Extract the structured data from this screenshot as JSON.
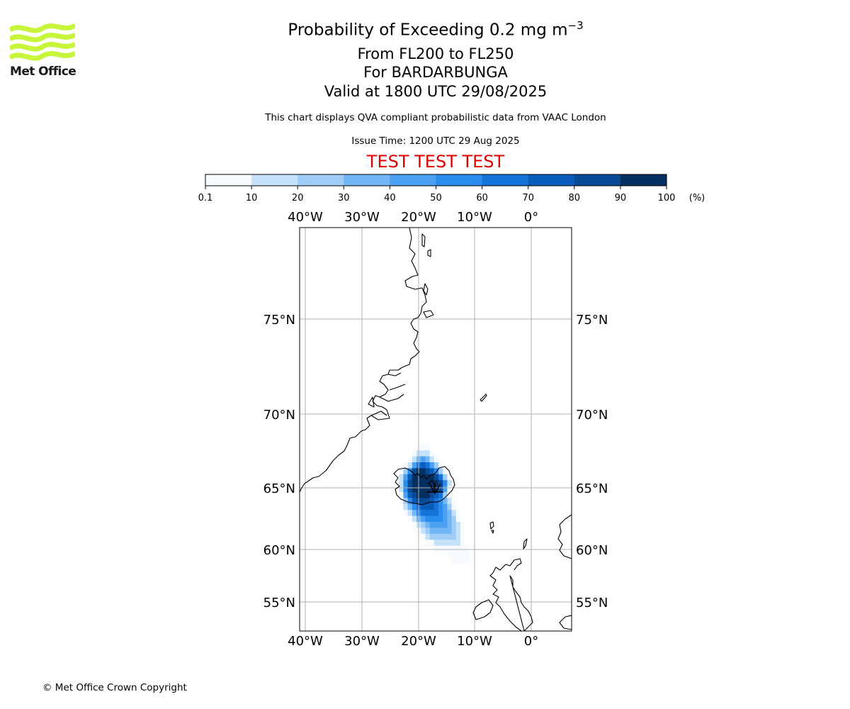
{
  "logo": {
    "text": "Met Office",
    "color": "#c6f53a"
  },
  "title": {
    "line1_prefix": "Probability of Exceeding 0.2 mg m",
    "line1_exp": "−3",
    "line2": "From FL200 to FL250",
    "line3": "For BARDARBUNGA",
    "line4": "Valid at 1800 UTC 29/08/2025"
  },
  "description": "This chart displays QVA compliant probabilistic data from VAAC London",
  "issue_time": "Issue Time: 1200 UTC 29 Aug 2025",
  "test_banner": "TEST TEST TEST",
  "colorbar": {
    "ticks": [
      "0.1",
      "10",
      "20",
      "30",
      "40",
      "50",
      "60",
      "70",
      "80",
      "90",
      "100"
    ],
    "unit": "(%)",
    "colors": [
      "#f7fbff",
      "#c6e2fb",
      "#9fcdf8",
      "#73b6f5",
      "#4ba0f1",
      "#2a8ced",
      "#1473d8",
      "#0a5cba",
      "#074b96",
      "#052f61"
    ]
  },
  "map": {
    "lon_labels": [
      "40°W",
      "30°W",
      "20°W",
      "10°W",
      "0°"
    ],
    "lat_labels": [
      "75°N",
      "70°N",
      "65°N",
      "60°N",
      "55°N"
    ],
    "plume_probability_pct": [
      [
        0,
        0,
        0,
        0,
        0,
        0,
        0,
        0,
        0,
        0,
        0,
        0,
        0,
        0,
        0,
        0,
        0,
        0,
        0,
        0,
        0,
        0,
        0,
        0,
        0
      ],
      [
        0,
        0,
        0,
        0,
        0,
        0,
        0,
        0,
        0,
        0,
        0,
        0,
        0,
        0,
        0,
        0,
        0,
        0,
        0,
        0,
        0,
        0,
        0,
        0,
        0
      ],
      [
        0,
        0,
        0,
        0,
        0,
        0,
        0,
        0,
        0,
        0,
        5,
        5,
        5,
        0,
        0,
        0,
        0,
        0,
        0,
        0,
        0,
        0,
        0,
        0,
        0
      ],
      [
        0,
        0,
        0,
        0,
        0,
        0,
        0,
        0,
        0,
        5,
        15,
        15,
        15,
        5,
        0,
        0,
        0,
        0,
        0,
        0,
        0,
        0,
        0,
        0,
        0
      ],
      [
        0,
        0,
        0,
        0,
        0,
        0,
        0,
        0,
        5,
        15,
        35,
        45,
        35,
        15,
        5,
        0,
        0,
        0,
        0,
        0,
        0,
        0,
        0,
        0,
        0
      ],
      [
        0,
        0,
        0,
        0,
        0,
        0,
        0,
        5,
        15,
        45,
        65,
        75,
        65,
        45,
        25,
        5,
        0,
        0,
        0,
        0,
        0,
        0,
        0,
        0,
        0
      ],
      [
        0,
        0,
        0,
        0,
        0,
        0,
        5,
        25,
        55,
        85,
        95,
        95,
        85,
        75,
        55,
        25,
        5,
        0,
        0,
        0,
        0,
        0,
        0,
        0,
        0
      ],
      [
        0,
        0,
        0,
        0,
        0,
        0,
        15,
        45,
        75,
        95,
        95,
        95,
        95,
        95,
        85,
        65,
        25,
        5,
        0,
        0,
        0,
        0,
        0,
        0,
        0
      ],
      [
        0,
        0,
        0,
        0,
        0,
        0,
        15,
        55,
        85,
        95,
        95,
        95,
        95,
        95,
        95,
        85,
        55,
        15,
        0,
        0,
        0,
        0,
        0,
        0,
        0
      ],
      [
        0,
        0,
        0,
        0,
        0,
        0,
        15,
        55,
        85,
        95,
        95,
        95,
        95,
        95,
        95,
        85,
        45,
        5,
        0,
        0,
        0,
        0,
        0,
        0,
        0
      ],
      [
        0,
        0,
        0,
        0,
        0,
        0,
        5,
        45,
        75,
        85,
        95,
        95,
        95,
        85,
        75,
        65,
        25,
        5,
        0,
        0,
        0,
        0,
        0,
        0,
        0
      ],
      [
        0,
        0,
        0,
        0,
        0,
        0,
        5,
        25,
        55,
        75,
        85,
        85,
        85,
        75,
        65,
        55,
        35,
        15,
        5,
        0,
        0,
        0,
        0,
        0,
        0
      ],
      [
        0,
        0,
        0,
        0,
        0,
        0,
        0,
        15,
        35,
        55,
        65,
        75,
        75,
        75,
        65,
        55,
        45,
        25,
        5,
        0,
        0,
        0,
        0,
        0,
        0
      ],
      [
        0,
        0,
        0,
        0,
        0,
        0,
        0,
        5,
        15,
        35,
        55,
        65,
        65,
        65,
        65,
        55,
        45,
        35,
        15,
        5,
        0,
        0,
        0,
        0,
        0
      ],
      [
        0,
        0,
        0,
        0,
        0,
        0,
        0,
        0,
        5,
        15,
        35,
        45,
        55,
        55,
        55,
        55,
        45,
        35,
        25,
        5,
        0,
        0,
        0,
        0,
        0
      ],
      [
        0,
        0,
        0,
        0,
        0,
        0,
        0,
        0,
        0,
        5,
        15,
        25,
        35,
        45,
        45,
        45,
        45,
        35,
        25,
        15,
        5,
        0,
        0,
        0,
        0
      ],
      [
        0,
        0,
        0,
        0,
        0,
        0,
        0,
        0,
        0,
        0,
        5,
        15,
        25,
        35,
        35,
        35,
        35,
        35,
        25,
        15,
        5,
        0,
        0,
        0,
        0
      ],
      [
        0,
        0,
        0,
        0,
        0,
        0,
        0,
        0,
        0,
        0,
        0,
        5,
        15,
        25,
        25,
        25,
        25,
        25,
        25,
        15,
        5,
        0,
        0,
        0,
        0
      ],
      [
        0,
        0,
        0,
        0,
        0,
        0,
        0,
        0,
        0,
        0,
        0,
        0,
        5,
        5,
        15,
        15,
        15,
        15,
        15,
        15,
        5,
        0,
        0,
        0,
        0
      ],
      [
        0,
        0,
        0,
        0,
        0,
        0,
        0,
        0,
        0,
        0,
        0,
        0,
        0,
        0,
        5,
        5,
        5,
        5,
        5,
        5,
        5,
        5,
        0,
        0,
        0
      ],
      [
        0,
        0,
        0,
        0,
        0,
        0,
        0,
        0,
        0,
        0,
        0,
        0,
        0,
        0,
        0,
        0,
        0,
        5,
        5,
        5,
        5,
        5,
        0,
        0,
        0
      ],
      [
        0,
        0,
        0,
        0,
        0,
        0,
        0,
        0,
        0,
        0,
        0,
        0,
        0,
        0,
        0,
        0,
        0,
        0,
        5,
        5,
        5,
        5,
        0,
        0,
        0
      ]
    ],
    "volcano": "BARDARBUNGA"
  },
  "footer": "© Met Office Crown Copyright"
}
